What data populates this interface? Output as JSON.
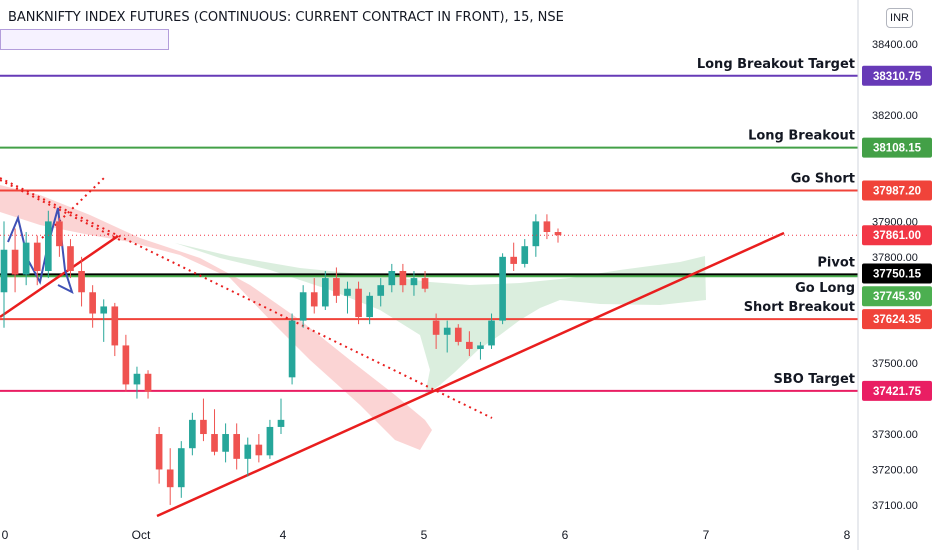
{
  "header": {
    "title": "BANKNIFTY INDEX FUTURES (CONTINUOUS: CURRENT CONTRACT IN FRONT), 15, NSE",
    "currency": "INR"
  },
  "chart_data": {
    "type": "candlestick",
    "title": "BANKNIFTY INDEX FUTURES (CONTINUOUS: CURRENT CONTRACT IN FRONT), 15, NSE",
    "ylim": [
      37080,
      38440
    ],
    "y_ticks": [
      {
        "label": "38400.00",
        "value": 38400
      },
      {
        "label": "38200.00",
        "value": 38200
      },
      {
        "label": "37900.00",
        "value": 37900
      },
      {
        "label": "37800.00",
        "value": 37800
      },
      {
        "label": "37500.00",
        "value": 37500
      },
      {
        "label": "37300.00",
        "value": 37300
      },
      {
        "label": "37200.00",
        "value": 37200
      },
      {
        "label": "37100.00",
        "value": 37100
      }
    ],
    "x_ticks": [
      "0",
      "Oct",
      "4",
      "5",
      "6",
      "7",
      "8"
    ],
    "levels": [
      {
        "name": "Long Breakout Target",
        "value": 38310.75,
        "tag": "38310.75",
        "color": "#673ab7",
        "text_color": "#ffffff"
      },
      {
        "name": "Long Breakout",
        "value": 38108.15,
        "tag": "38108.15",
        "color": "#43a047",
        "text_color": "#ffffff"
      },
      {
        "name": "Go Short",
        "value": 37987.2,
        "tag": "37987.20",
        "color": "#f0433a",
        "text_color": "#ffffff"
      },
      {
        "name": "Pivot",
        "value": 37750.15,
        "tag": "37750.15",
        "color": "#000000",
        "text_color": "#ffffff"
      },
      {
        "name": "Go Long",
        "value": 37745.3,
        "tag": "37745.30",
        "color": "#4caf50",
        "text_color": "#ffffff"
      },
      {
        "name": "Short Breakout",
        "value": 37624.35,
        "tag": "37624.35",
        "color": "#f0433a",
        "text_color": "#ffffff"
      },
      {
        "name": "SBO Target",
        "value": 37421.75,
        "tag": "37421.75",
        "color": "#e91e63",
        "text_color": "#ffffff"
      }
    ],
    "last_price": {
      "value": 37861.0,
      "tag": "37861.00",
      "color": "#f23645"
    },
    "colors": {
      "up": "#26a69a",
      "down": "#ef5350",
      "cloud_red": "#f9c2c2",
      "cloud_green": "#cfe8d3",
      "trend": "#e91e1e",
      "pattern": "#3f51b5"
    },
    "candles": [
      {
        "x": 0,
        "o": 37700,
        "h": 37900,
        "l": 37600,
        "c": 37820
      },
      {
        "x": 1,
        "o": 37820,
        "h": 37880,
        "l": 37700,
        "c": 37750
      },
      {
        "x": 2,
        "o": 37750,
        "h": 37870,
        "l": 37720,
        "c": 37840
      },
      {
        "x": 3,
        "o": 37840,
        "h": 37860,
        "l": 37720,
        "c": 37760
      },
      {
        "x": 4,
        "o": 37760,
        "h": 37930,
        "l": 37740,
        "c": 37900
      },
      {
        "x": 5,
        "o": 37900,
        "h": 37910,
        "l": 37800,
        "c": 37830
      },
      {
        "x": 6,
        "o": 37830,
        "h": 37850,
        "l": 37740,
        "c": 37760
      },
      {
        "x": 7,
        "o": 37760,
        "h": 37800,
        "l": 37660,
        "c": 37700
      },
      {
        "x": 8,
        "o": 37700,
        "h": 37720,
        "l": 37600,
        "c": 37640
      },
      {
        "x": 9,
        "o": 37640,
        "h": 37680,
        "l": 37560,
        "c": 37660
      },
      {
        "x": 10,
        "o": 37660,
        "h": 37670,
        "l": 37520,
        "c": 37550
      },
      {
        "x": 11,
        "o": 37550,
        "h": 37580,
        "l": 37420,
        "c": 37440
      },
      {
        "x": 12,
        "o": 37440,
        "h": 37490,
        "l": 37400,
        "c": 37470
      },
      {
        "x": 13,
        "o": 37470,
        "h": 37480,
        "l": 37400,
        "c": 37420
      },
      {
        "x": 14,
        "o": 37300,
        "h": 37320,
        "l": 37160,
        "c": 37200
      },
      {
        "x": 15,
        "o": 37200,
        "h": 37260,
        "l": 37100,
        "c": 37150
      },
      {
        "x": 16,
        "o": 37150,
        "h": 37280,
        "l": 37120,
        "c": 37260
      },
      {
        "x": 17,
        "o": 37260,
        "h": 37360,
        "l": 37240,
        "c": 37340
      },
      {
        "x": 18,
        "o": 37340,
        "h": 37400,
        "l": 37280,
        "c": 37300
      },
      {
        "x": 19,
        "o": 37300,
        "h": 37370,
        "l": 37240,
        "c": 37250
      },
      {
        "x": 20,
        "o": 37250,
        "h": 37330,
        "l": 37220,
        "c": 37300
      },
      {
        "x": 21,
        "o": 37300,
        "h": 37330,
        "l": 37200,
        "c": 37230
      },
      {
        "x": 22,
        "o": 37230,
        "h": 37290,
        "l": 37180,
        "c": 37270
      },
      {
        "x": 23,
        "o": 37270,
        "h": 37300,
        "l": 37220,
        "c": 37240
      },
      {
        "x": 24,
        "o": 37240,
        "h": 37340,
        "l": 37230,
        "c": 37320
      },
      {
        "x": 25,
        "o": 37320,
        "h": 37400,
        "l": 37300,
        "c": 37340
      },
      {
        "x": 26,
        "o": 37460,
        "h": 37640,
        "l": 37440,
        "c": 37620
      },
      {
        "x": 27,
        "o": 37620,
        "h": 37720,
        "l": 37600,
        "c": 37700
      },
      {
        "x": 28,
        "o": 37700,
        "h": 37740,
        "l": 37640,
        "c": 37660
      },
      {
        "x": 29,
        "o": 37660,
        "h": 37760,
        "l": 37650,
        "c": 37740
      },
      {
        "x": 30,
        "o": 37740,
        "h": 37770,
        "l": 37670,
        "c": 37690
      },
      {
        "x": 31,
        "o": 37690,
        "h": 37730,
        "l": 37640,
        "c": 37710
      },
      {
        "x": 32,
        "o": 37710,
        "h": 37730,
        "l": 37610,
        "c": 37630
      },
      {
        "x": 33,
        "o": 37630,
        "h": 37700,
        "l": 37610,
        "c": 37690
      },
      {
        "x": 34,
        "o": 37690,
        "h": 37740,
        "l": 37660,
        "c": 37720
      },
      {
        "x": 35,
        "o": 37720,
        "h": 37780,
        "l": 37700,
        "c": 37760
      },
      {
        "x": 36,
        "o": 37760,
        "h": 37780,
        "l": 37700,
        "c": 37720
      },
      {
        "x": 37,
        "o": 37720,
        "h": 37760,
        "l": 37690,
        "c": 37740
      },
      {
        "x": 38,
        "o": 37740,
        "h": 37760,
        "l": 37700,
        "c": 37710
      },
      {
        "x": 39,
        "o": 37620,
        "h": 37640,
        "l": 37540,
        "c": 37580
      },
      {
        "x": 40,
        "o": 37580,
        "h": 37620,
        "l": 37530,
        "c": 37600
      },
      {
        "x": 41,
        "o": 37600,
        "h": 37610,
        "l": 37550,
        "c": 37560
      },
      {
        "x": 42,
        "o": 37560,
        "h": 37590,
        "l": 37520,
        "c": 37540
      },
      {
        "x": 43,
        "o": 37540,
        "h": 37560,
        "l": 37510,
        "c": 37550
      },
      {
        "x": 44,
        "o": 37550,
        "h": 37640,
        "l": 37540,
        "c": 37620
      },
      {
        "x": 45,
        "o": 37620,
        "h": 37810,
        "l": 37610,
        "c": 37800
      },
      {
        "x": 46,
        "o": 37800,
        "h": 37840,
        "l": 37760,
        "c": 37780
      },
      {
        "x": 47,
        "o": 37780,
        "h": 37850,
        "l": 37770,
        "c": 37830
      },
      {
        "x": 48,
        "o": 37830,
        "h": 37920,
        "l": 37800,
        "c": 37900
      },
      {
        "x": 49,
        "o": 37900,
        "h": 37920,
        "l": 37850,
        "c": 37870
      },
      {
        "x": 50,
        "o": 37870,
        "h": 37880,
        "l": 37840,
        "c": 37861
      }
    ]
  }
}
